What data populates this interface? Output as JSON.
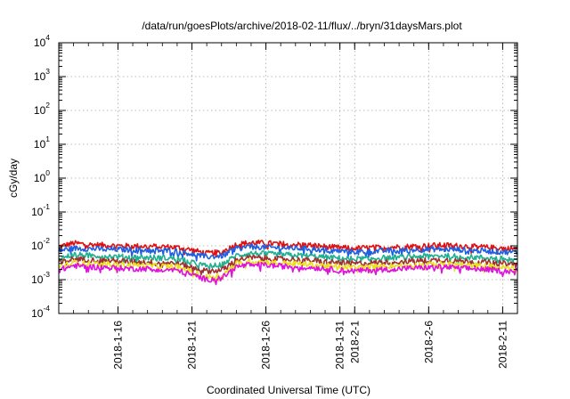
{
  "chart_data": {
    "type": "line",
    "title": "/data/run/goesPlots/archive/2018-02-11/flux/../bryn/31daysMars.plot",
    "xlabel": "Coordinated Universal Time (UTC)",
    "ylabel": "cGy/day",
    "yscale": "log",
    "ylim": [
      0.0001,
      10000
    ],
    "y_ticks": [
      {
        "base": "10",
        "exp": "4",
        "value": 10000
      },
      {
        "base": "10",
        "exp": "3",
        "value": 1000
      },
      {
        "base": "10",
        "exp": "2",
        "value": 100
      },
      {
        "base": "10",
        "exp": "1",
        "value": 10
      },
      {
        "base": "10",
        "exp": "0",
        "value": 1
      },
      {
        "base": "10",
        "exp": "-1",
        "value": 0.1
      },
      {
        "base": "10",
        "exp": "-2",
        "value": 0.01
      },
      {
        "base": "10",
        "exp": "-3",
        "value": 0.001
      },
      {
        "base": "10",
        "exp": "-4",
        "value": 0.0001
      }
    ],
    "xlim": [
      "2018-01-12",
      "2018-02-12"
    ],
    "x_ticks": [
      {
        "label": "2018-1-16",
        "date": "2018-01-16"
      },
      {
        "label": "2018-1-21",
        "date": "2018-01-21"
      },
      {
        "label": "2018-1-26",
        "date": "2018-01-26"
      },
      {
        "label": "2018-1-31",
        "date": "2018-01-31"
      },
      {
        "label": "2018-2-1",
        "date": "2018-02-01"
      },
      {
        "label": "2018-2-6",
        "date": "2018-02-06"
      },
      {
        "label": "2018-2-11",
        "date": "2018-02-11"
      }
    ],
    "grid": true,
    "x": [
      "2018-01-12",
      "2018-01-13",
      "2018-01-14",
      "2018-01-15",
      "2018-01-16",
      "2018-01-17",
      "2018-01-18",
      "2018-01-19",
      "2018-01-20",
      "2018-01-21",
      "2018-01-22",
      "2018-01-23",
      "2018-01-24",
      "2018-01-25",
      "2018-01-26",
      "2018-01-27",
      "2018-01-28",
      "2018-01-29",
      "2018-01-30",
      "2018-01-31",
      "2018-02-01",
      "2018-02-02",
      "2018-02-03",
      "2018-02-04",
      "2018-02-05",
      "2018-02-06",
      "2018-02-07",
      "2018-02-08",
      "2018-02-09",
      "2018-02-10",
      "2018-02-11",
      "2018-02-12"
    ],
    "series": [
      {
        "color": "#e01010",
        "values": [
          0.0095,
          0.012,
          0.011,
          0.0105,
          0.01,
          0.0098,
          0.0097,
          0.0095,
          0.009,
          0.0075,
          0.006,
          0.0065,
          0.011,
          0.0125,
          0.012,
          0.0115,
          0.011,
          0.0105,
          0.0095,
          0.0088,
          0.0085,
          0.0088,
          0.009,
          0.0093,
          0.0098,
          0.0102,
          0.0105,
          0.01,
          0.0095,
          0.009,
          0.0085,
          0.0082
        ]
      },
      {
        "color": "#2060e0",
        "values": [
          0.0072,
          0.0085,
          0.0082,
          0.008,
          0.0078,
          0.0076,
          0.0075,
          0.0073,
          0.007,
          0.0058,
          0.0047,
          0.005,
          0.0085,
          0.0095,
          0.009,
          0.0088,
          0.0085,
          0.0082,
          0.0075,
          0.007,
          0.0067,
          0.0069,
          0.0071,
          0.0074,
          0.0077,
          0.0079,
          0.008,
          0.0077,
          0.0073,
          0.007,
          0.0066,
          0.0064
        ]
      },
      {
        "color": "#20b090",
        "values": [
          0.0042,
          0.0055,
          0.0052,
          0.005,
          0.0048,
          0.0046,
          0.0045,
          0.0044,
          0.0042,
          0.0032,
          0.0025,
          0.0027,
          0.0052,
          0.006,
          0.0058,
          0.0055,
          0.0053,
          0.005,
          0.0046,
          0.0043,
          0.0041,
          0.0042,
          0.0044,
          0.0046,
          0.0048,
          0.005,
          0.0051,
          0.0049,
          0.0046,
          0.0044,
          0.0041,
          0.004
        ]
      },
      {
        "color": "#a03030",
        "values": [
          0.0031,
          0.0041,
          0.0039,
          0.0037,
          0.0035,
          0.0034,
          0.0033,
          0.0032,
          0.003,
          0.0023,
          0.0018,
          0.0019,
          0.0039,
          0.0045,
          0.0043,
          0.0041,
          0.0039,
          0.0037,
          0.0034,
          0.0032,
          0.003,
          0.0031,
          0.0033,
          0.0034,
          0.0036,
          0.0037,
          0.0038,
          0.0036,
          0.0034,
          0.0032,
          0.003,
          0.0029
        ]
      },
      {
        "color": "#e8e020",
        "values": [
          0.0024,
          0.0032,
          0.003,
          0.0029,
          0.0028,
          0.0027,
          0.0026,
          0.0025,
          0.0024,
          0.0017,
          0.0012,
          0.0013,
          0.003,
          0.0035,
          0.0033,
          0.0031,
          0.003,
          0.0028,
          0.0026,
          0.0024,
          0.0023,
          0.0024,
          0.0025,
          0.0026,
          0.0027,
          0.0028,
          0.0029,
          0.0028,
          0.0026,
          0.0025,
          0.0023,
          0.0022
        ]
      },
      {
        "color": "#e010e0",
        "values": [
          0.0019,
          0.0026,
          0.0024,
          0.0023,
          0.0022,
          0.0021,
          0.0021,
          0.002,
          0.0019,
          0.0014,
          0.001,
          0.0011,
          0.0024,
          0.0028,
          0.0027,
          0.0025,
          0.0024,
          0.0023,
          0.0021,
          0.0019,
          0.0018,
          0.0019,
          0.002,
          0.0021,
          0.0022,
          0.0023,
          0.0024,
          0.0022,
          0.0021,
          0.002,
          0.0018,
          0.0018
        ]
      }
    ]
  }
}
